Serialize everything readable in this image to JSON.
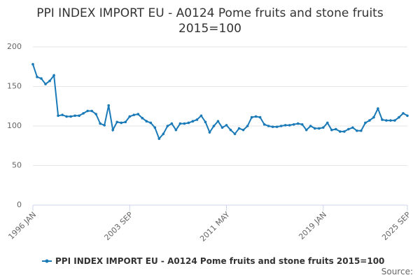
{
  "chart_data": {
    "type": "line",
    "title": "PPI INDEX IMPORT EU - A0124 Pome fruits and stone fruits 2015=100",
    "source": "Source:",
    "categories": [
      "1996 JAN",
      null,
      null,
      null,
      null,
      null,
      null,
      null,
      null,
      null,
      null,
      null,
      null,
      null,
      null,
      null,
      null,
      null,
      null,
      null,
      null,
      null,
      null,
      "2003 SEP",
      null,
      null,
      null,
      null,
      null,
      null,
      null,
      null,
      null,
      null,
      null,
      null,
      null,
      null,
      null,
      null,
      null,
      null,
      null,
      null,
      null,
      null,
      "2011 MAY",
      null,
      null,
      null,
      null,
      null,
      null,
      null,
      null,
      null,
      null,
      null,
      null,
      null,
      null,
      null,
      null,
      null,
      null,
      null,
      null,
      null,
      null,
      "2019 JAN",
      null,
      null,
      null,
      null,
      null,
      null,
      null,
      null,
      null,
      null,
      null,
      null,
      null,
      null,
      null,
      null,
      null,
      null,
      null,
      "2025 SEP"
    ],
    "series": [
      {
        "name": "PPI INDEX IMPORT EU - A0124 Pome fruits and stone fruits 2015=100",
        "color": "#1a7ab8",
        "values": [
          178,
          162,
          160,
          153,
          157,
          164,
          113,
          114,
          112,
          112,
          113,
          113,
          116,
          119,
          119,
          115,
          103,
          101,
          126,
          95,
          105,
          104,
          105,
          112,
          114,
          115,
          110,
          106,
          104,
          98,
          84,
          90,
          100,
          103,
          95,
          103,
          103,
          104,
          106,
          108,
          113,
          105,
          92,
          100,
          106,
          98,
          101,
          95,
          90,
          97,
          95,
          100,
          111,
          112,
          111,
          102,
          100,
          99,
          99,
          100,
          101,
          101,
          102,
          103,
          102,
          95,
          100,
          97,
          97,
          98,
          104,
          95,
          96,
          93,
          93,
          96,
          98,
          94,
          94,
          104,
          107,
          111,
          122,
          108,
          107,
          107,
          107,
          111,
          116,
          113
        ]
      }
    ],
    "ylim": [
      0,
      200
    ],
    "yticks": [
      0,
      50,
      100,
      150,
      200
    ],
    "grid": true,
    "legend": "bottom"
  }
}
